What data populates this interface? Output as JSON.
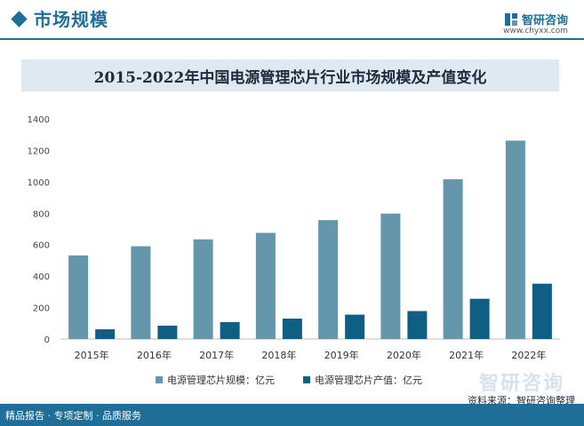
{
  "header": {
    "section_title": "市场规模",
    "brand_name": "智研咨询",
    "brand_url": "www.chyxx.com"
  },
  "footer": {
    "left_text": "精品报告 · 专项定制 · 品质服务",
    "source_text": "资料来源：智研咨询整理"
  },
  "colors": {
    "brand": "#1f6e98",
    "series_1": "#6496ac",
    "series_2": "#0f5f84",
    "banner": "#dfe9f1"
  },
  "chart_data": {
    "type": "bar",
    "title": "2015-2022年中国电源管理芯片行业市场规模及产值变化",
    "categories": [
      "2015年",
      "2016年",
      "2017年",
      "2018年",
      "2019年",
      "2020年",
      "2021年",
      "2022年"
    ],
    "series": [
      {
        "name": "电源管理芯片规模：亿元",
        "values": [
          532,
          590,
          634,
          675,
          756,
          798,
          1016,
          1262
        ]
      },
      {
        "name": "电源管理芯片产值：亿元",
        "values": [
          62,
          85,
          108,
          130,
          155,
          178,
          256,
          352
        ]
      }
    ],
    "ylim": [
      0,
      1400
    ],
    "yticks": [
      0,
      200,
      400,
      600,
      800,
      1000,
      1200,
      1400
    ],
    "grid": false,
    "legend": "bottom"
  }
}
